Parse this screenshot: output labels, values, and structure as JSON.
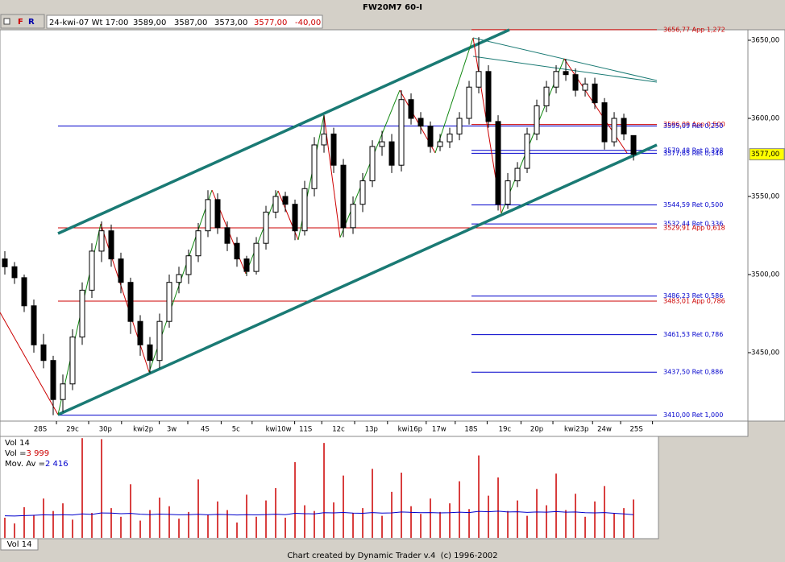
{
  "header": {
    "title": "FW20M7 60-I",
    "buttons": [
      "F",
      "R"
    ],
    "info": [
      "24-kwi-07 Wt 17:00",
      "3589,00",
      "3587,00",
      "3573,00",
      "3577,00",
      "-40,00"
    ]
  },
  "chart_data": {
    "type": "candlestick",
    "up_color": "#ffffff",
    "down_color": "#000000",
    "xlim": [
      -0.5,
      76.83
    ],
    "ylim": [
      3406.7,
      3656.7
    ],
    "yticks": [
      {
        "value": 3650,
        "label": "3650,00"
      },
      {
        "value": 3600,
        "label": "3600,00"
      },
      {
        "value": 3550,
        "label": "3550,00"
      },
      {
        "value": 3500,
        "label": "3500,00"
      },
      {
        "value": 3450,
        "label": "3450,00"
      }
    ],
    "xticks": [
      {
        "value": 3.67,
        "label": "28S"
      },
      {
        "value": 7,
        "label": "29c"
      },
      {
        "value": 10.4,
        "label": "30p"
      },
      {
        "value": 14.3,
        "label": "kwi2p"
      },
      {
        "value": 17.25,
        "label": "3w"
      },
      {
        "value": 20.7,
        "label": "4S"
      },
      {
        "value": 23.9,
        "label": "5c"
      },
      {
        "value": 28.3,
        "label": "kwi10w"
      },
      {
        "value": 31.1,
        "label": "11S"
      },
      {
        "value": 34.5,
        "label": "12c"
      },
      {
        "value": 37.9,
        "label": "13p"
      },
      {
        "value": 41.9,
        "label": "kwi16p"
      },
      {
        "value": 44.9,
        "label": "17w"
      },
      {
        "value": 48.2,
        "label": "18S"
      },
      {
        "value": 51.7,
        "label": "19c"
      },
      {
        "value": 55,
        "label": "20p"
      },
      {
        "value": 59.1,
        "label": "kwi23p"
      },
      {
        "value": 62,
        "label": "24w"
      },
      {
        "value": 65.3,
        "label": "25S"
      }
    ],
    "ohlc": [
      [
        3510,
        3515,
        3500,
        3505
      ],
      [
        3505,
        3508,
        3494,
        3498
      ],
      [
        3498,
        3500,
        3476,
        3480
      ],
      [
        3480,
        3484,
        3450,
        3455
      ],
      [
        3455,
        3462,
        3440,
        3445
      ],
      [
        3445,
        3448,
        3410,
        3420
      ],
      [
        3420,
        3436,
        3412,
        3430
      ],
      [
        3430,
        3465,
        3426,
        3460
      ],
      [
        3460,
        3495,
        3455,
        3490
      ],
      [
        3490,
        3520,
        3485,
        3515
      ],
      [
        3515,
        3534,
        3508,
        3528
      ],
      [
        3528,
        3532,
        3505,
        3510
      ],
      [
        3510,
        3514,
        3488,
        3495
      ],
      [
        3495,
        3498,
        3462,
        3470
      ],
      [
        3470,
        3474,
        3448,
        3455
      ],
      [
        3455,
        3460,
        3437,
        3445
      ],
      [
        3445,
        3475,
        3440,
        3470
      ],
      [
        3470,
        3500,
        3466,
        3495
      ],
      [
        3495,
        3505,
        3488,
        3500
      ],
      [
        3500,
        3516,
        3494,
        3512
      ],
      [
        3512,
        3533,
        3508,
        3528
      ],
      [
        3528,
        3554,
        3524,
        3548
      ],
      [
        3548,
        3552,
        3526,
        3530
      ],
      [
        3530,
        3534,
        3515,
        3520
      ],
      [
        3520,
        3524,
        3505,
        3510
      ],
      [
        3510,
        3512,
        3499,
        3502
      ],
      [
        3502,
        3524,
        3500,
        3520
      ],
      [
        3520,
        3544,
        3516,
        3540
      ],
      [
        3540,
        3554,
        3536,
        3550
      ],
      [
        3550,
        3553,
        3540,
        3545
      ],
      [
        3545,
        3548,
        3522,
        3528
      ],
      [
        3528,
        3560,
        3525,
        3555
      ],
      [
        3555,
        3588,
        3550,
        3583
      ],
      [
        3583,
        3602,
        3578,
        3590
      ],
      [
        3590,
        3594,
        3565,
        3570
      ],
      [
        3570,
        3574,
        3524,
        3530
      ],
      [
        3530,
        3550,
        3526,
        3545
      ],
      [
        3545,
        3565,
        3540,
        3560
      ],
      [
        3560,
        3586,
        3556,
        3582
      ],
      [
        3582,
        3592,
        3576,
        3585
      ],
      [
        3585,
        3590,
        3565,
        3570
      ],
      [
        3570,
        3618,
        3566,
        3612
      ],
      [
        3612,
        3616,
        3596,
        3600
      ],
      [
        3600,
        3604,
        3590,
        3595
      ],
      [
        3595,
        3598,
        3578,
        3582
      ],
      [
        3582,
        3590,
        3579,
        3585
      ],
      [
        3585,
        3594,
        3581,
        3590
      ],
      [
        3590,
        3604,
        3586,
        3600
      ],
      [
        3600,
        3624,
        3596,
        3620
      ],
      [
        3620,
        3652,
        3616,
        3630
      ],
      [
        3630,
        3634,
        3594,
        3598
      ],
      [
        3598,
        3602,
        3541,
        3545
      ],
      [
        3545,
        3565,
        3542,
        3560
      ],
      [
        3560,
        3572,
        3556,
        3568
      ],
      [
        3568,
        3594,
        3565,
        3590
      ],
      [
        3590,
        3612,
        3586,
        3608
      ],
      [
        3608,
        3624,
        3604,
        3620
      ],
      [
        3620,
        3634,
        3616,
        3630
      ],
      [
        3630,
        3638,
        3624,
        3628
      ],
      [
        3628,
        3632,
        3614,
        3618
      ],
      [
        3618,
        3626,
        3614,
        3622
      ],
      [
        3622,
        3626,
        3606,
        3610
      ],
      [
        3610,
        3613,
        3580,
        3585
      ],
      [
        3585,
        3604,
        3582,
        3600
      ],
      [
        3600,
        3603,
        3586,
        3590
      ],
      [
        3589,
        3589,
        3573,
        3577
      ]
    ],
    "last_price_label": "3577,00",
    "levels": [
      {
        "value": 3656.77,
        "label": "3656,77 App 1,272",
        "color": "#cc0000",
        "extent": "right"
      },
      {
        "value": 3596.09,
        "label": "3596,09 App 0,500",
        "color": "#cc0000",
        "extent": "right"
      },
      {
        "value": 3595.09,
        "label": "3595,09 Ret 0,250",
        "color": "#0000cc",
        "extent": "full"
      },
      {
        "value": 3579.48,
        "label": "3579,48 Ret 0,398",
        "color": "#0000cc",
        "extent": "right"
      },
      {
        "value": 3577.65,
        "label": "3577,65 Ret 0,346",
        "color": "#0000cc",
        "extent": "right"
      },
      {
        "value": 3544.59,
        "label": "3544,59 Ret 0,500",
        "color": "#0000cc",
        "extent": "right"
      },
      {
        "value": 3532.44,
        "label": "3532,44 Ret 0,336",
        "color": "#0000cc",
        "extent": "right"
      },
      {
        "value": 3529.91,
        "label": "3529,91 App 0,618",
        "color": "#cc0000",
        "extent": "full"
      },
      {
        "value": 3486.23,
        "label": "3486,23 Ret 0,586",
        "color": "#0000cc",
        "extent": "right"
      },
      {
        "value": 3483.01,
        "label": "3483,01 App 0,786",
        "color": "#cc0000",
        "extent": "full"
      },
      {
        "value": 3461.53,
        "label": "3461,53 Ret 0,786",
        "color": "#0000cc",
        "extent": "right"
      },
      {
        "value": 3437.5,
        "label": "3437,50 Ret 0,886",
        "color": "#0000cc",
        "extent": "right"
      },
      {
        "value": 3410,
        "label": "3410,00 Ret 1,000",
        "color": "#0000cc",
        "extent": "full"
      }
    ]
  },
  "volume_panel": {
    "type": "bar",
    "title": "Vol 14",
    "vol_label": "Vol =",
    "vol_value": "3 999",
    "ma_label": "Mov. Av =",
    "ma_value": "2 416",
    "tab": "Vol 14",
    "color": "#cc0000",
    "ma_color": "#0000cc",
    "ylim": [
      0,
      10500
    ],
    "values": [
      2100,
      1500,
      3200,
      2400,
      4100,
      2800,
      3600,
      1900,
      10400,
      2600,
      10300,
      3100,
      2200,
      5600,
      1800,
      2900,
      4200,
      3300,
      2000,
      2700,
      6100,
      2400,
      3800,
      2900,
      1600,
      4500,
      2200,
      3900,
      5200,
      2100,
      7900,
      3400,
      2800,
      9900,
      3700,
      6500,
      2600,
      3100,
      7200,
      2300,
      4800,
      6800,
      3300,
      2500,
      4100,
      2700,
      3600,
      5900,
      3000,
      8600,
      4400,
      6300,
      2800,
      3900,
      2300,
      5100,
      3400,
      6700,
      2900,
      4600,
      2200,
      3800,
      5400,
      2600,
      3100,
      3999
    ],
    "ma": [
      2300,
      2280,
      2320,
      2350,
      2400,
      2380,
      2420,
      2380,
      2500,
      2450,
      2600,
      2580,
      2520,
      2550,
      2470,
      2430,
      2480,
      2450,
      2400,
      2420,
      2460,
      2400,
      2450,
      2430,
      2380,
      2420,
      2390,
      2430,
      2470,
      2420,
      2560,
      2520,
      2500,
      2620,
      2600,
      2650,
      2580,
      2560,
      2640,
      2580,
      2600,
      2700,
      2660,
      2620,
      2640,
      2600,
      2620,
      2680,
      2640,
      2760,
      2720,
      2780,
      2700,
      2720,
      2660,
      2700,
      2680,
      2740,
      2680,
      2700,
      2620,
      2600,
      2640,
      2560,
      2500,
      2416
    ]
  },
  "footer": "Chart created by Dynamic Trader v.4  (c) 1996-2002"
}
